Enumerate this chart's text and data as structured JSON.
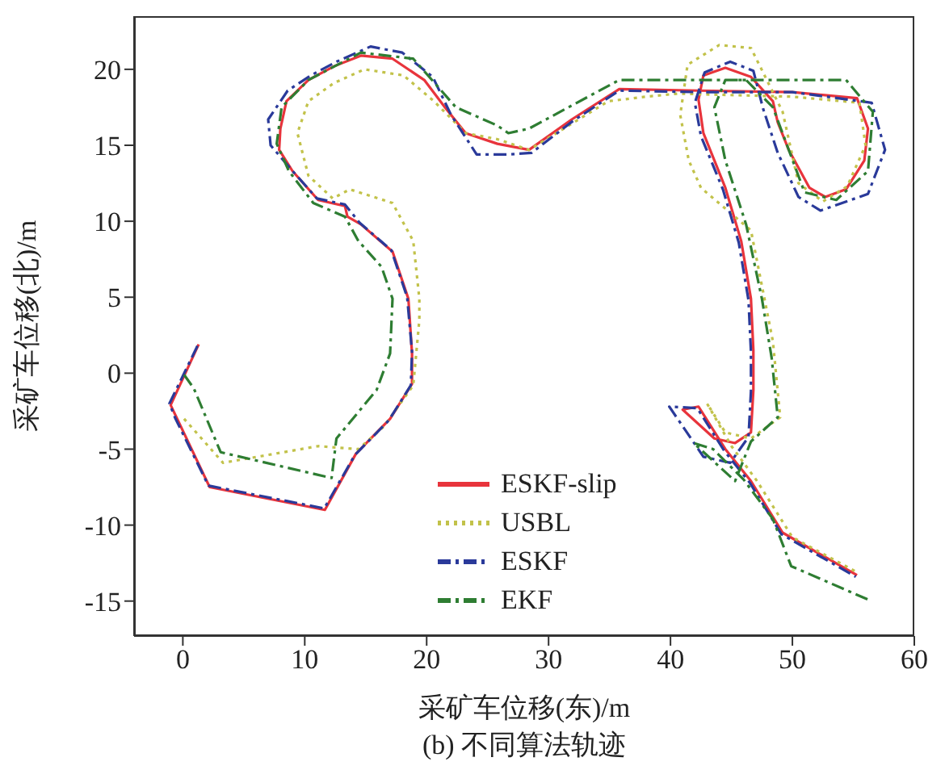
{
  "chart_data": {
    "type": "line",
    "xlabel": "采矿车位移(东)/m",
    "ylabel": "采矿车位移(北)/m",
    "annotations": [
      "(b) 不同算法轨迹"
    ],
    "xlim": [
      -4,
      60
    ],
    "ylim": [
      -17.3,
      23.5
    ],
    "xticks": [
      0,
      10,
      20,
      30,
      40,
      50,
      60
    ],
    "yticks": [
      -15,
      -10,
      -5,
      0,
      5,
      10,
      15,
      20
    ],
    "grid": false,
    "legend": "bottom",
    "marker": "none",
    "series": [
      {
        "name": "ESKF-slip",
        "color": "#e8343c",
        "line_style": "solid",
        "x": [
          1.3,
          -1.0,
          2.2,
          11.65,
          14.2,
          17.0,
          18.8,
          18.8,
          18.5,
          17.2,
          14.6,
          13.5,
          13.3,
          11.1,
          9.0,
          7.9,
          8.0,
          8.5,
          10.3,
          12.4,
          14.6,
          17.2,
          19.8,
          21.5,
          23.2,
          25.8,
          28.4,
          31.9,
          35.8,
          42.3,
          50,
          55.3,
          56.2,
          55.9,
          54.4,
          52.7,
          51.4,
          49.7,
          48.8,
          48.4,
          46.6,
          44.5,
          42.7,
          42.3,
          42.7,
          44.5,
          45.8,
          46.6,
          46.8,
          46.8,
          46.6,
          45.3,
          43.6,
          41.0,
          42.3,
          44.5,
          46.6,
          49.2,
          55.3
        ],
        "values": [
          1.9,
          -2.1,
          -7.5,
          -9.0,
          -5.3,
          -3.0,
          -0.7,
          1.3,
          4.9,
          8.0,
          9.8,
          10.3,
          11.0,
          11.4,
          13.3,
          14.7,
          16.1,
          17.9,
          19.3,
          20.2,
          20.9,
          20.7,
          19.3,
          17.5,
          15.8,
          15.1,
          14.7,
          16.7,
          18.7,
          18.6,
          18.5,
          18.1,
          16.1,
          14.0,
          12.1,
          11.6,
          12.2,
          14.7,
          16.5,
          17.9,
          19.5,
          20.1,
          19.6,
          18.0,
          15.8,
          12.2,
          8.7,
          4.9,
          1.5,
          -1.1,
          -3.9,
          -4.6,
          -4.3,
          -2.4,
          -2.2,
          -5.0,
          -7.1,
          -10.5,
          -13.3
        ]
      },
      {
        "name": "USBL",
        "color": "#c2c24a",
        "line_style": "dotted",
        "x": [
          0.1,
          3.3,
          11.1,
          14.4,
          16.5,
          18.9,
          19.4,
          19.4,
          18.9,
          17.2,
          13.7,
          12.3,
          10.3,
          9.4,
          10.3,
          12.4,
          14.9,
          18.1,
          20.6,
          23.2,
          25.8,
          28.4,
          34.9,
          38.0,
          40.6,
          50,
          55.5,
          56.0,
          54.5,
          52.5,
          50.5,
          49.2,
          46.6,
          44.0,
          41.4,
          40.8,
          41.5,
          42.5,
          46.6,
          48.4,
          49.0,
          46.6,
          44.5,
          43.0,
          45.0,
          47.1,
          50.0,
          55.3
        ],
        "values": [
          -3.0,
          -5.9,
          -4.8,
          -5.0,
          -3.5,
          -0.8,
          3.5,
          4.9,
          8.7,
          11.2,
          12.1,
          11.5,
          13.0,
          15.8,
          17.9,
          19.1,
          20.0,
          19.6,
          17.9,
          15.8,
          15.4,
          14.7,
          17.9,
          18.2,
          18.4,
          18.2,
          17.8,
          15.0,
          12.3,
          11.3,
          12.5,
          17.2,
          21.4,
          21.6,
          20.3,
          17.0,
          14.0,
          12.2,
          9.4,
          2.1,
          -2.9,
          -4.3,
          -3.9,
          -2.0,
          -4.8,
          -7.1,
          -10.8,
          -13.1
        ]
      },
      {
        "name": "ESKF",
        "color": "#2a3a9a",
        "line_style": "dashed",
        "x": [
          1.2,
          -1.1,
          -0.6,
          2.1,
          11.6,
          14.1,
          16.9,
          18.7,
          18.8,
          18.4,
          17.1,
          14.5,
          13.3,
          11.0,
          8.9,
          7.2,
          7.0,
          8.6,
          10.5,
          12.6,
          15.4,
          18.0,
          20.5,
          22.0,
          24.1,
          26.7,
          28.6,
          32.0,
          35.8,
          42.3,
          50,
          56.5,
          57.6,
          56.2,
          52.3,
          50.5,
          48.8,
          47.6,
          46.8,
          44.9,
          42.8,
          42.0,
          42.5,
          44.3,
          45.6,
          46.4,
          46.6,
          46.6,
          46.4,
          44.9,
          42.7,
          39.9,
          42.2,
          44.4,
          46.5,
          49.1,
          55.2
        ],
        "values": [
          1.8,
          -2.0,
          -3.0,
          -7.4,
          -8.9,
          -5.4,
          -3.1,
          -0.8,
          1.4,
          5.0,
          8.1,
          9.9,
          11.1,
          11.5,
          13.4,
          15.0,
          16.7,
          18.6,
          19.6,
          20.5,
          21.5,
          21.1,
          19.5,
          17.0,
          14.4,
          14.4,
          14.5,
          16.6,
          18.6,
          18.5,
          18.5,
          17.8,
          14.7,
          11.8,
          10.7,
          11.6,
          14.5,
          17.4,
          19.9,
          20.5,
          19.8,
          17.8,
          15.6,
          12.1,
          8.6,
          4.8,
          1.4,
          -1.2,
          -4.2,
          -5.9,
          -5.5,
          -2.2,
          -2.3,
          -5.1,
          -7.2,
          -10.6,
          -13.4
        ]
      },
      {
        "name": "EKF",
        "color": "#2e7d32",
        "line_style": "dashed",
        "x": [
          0.1,
          0.9,
          3.1,
          12.2,
          12.6,
          15.9,
          17.0,
          17.2,
          16.3,
          14.4,
          13.3,
          10.7,
          8.7,
          7.7,
          8.1,
          10.3,
          14.6,
          18.9,
          22.4,
          25.8,
          26.7,
          28.4,
          35.8,
          54.4,
          56.6,
          56.2,
          53.6,
          51.0,
          48.4,
          46.2,
          44.5,
          43.6,
          44.5,
          46.2,
          47.5,
          48.3,
          48.8,
          46.6,
          45.3,
          41.9,
          43.5,
          46.0,
          48.4,
          49.9,
          56.2
        ],
        "values": [
          -0.1,
          -1.0,
          -5.2,
          -6.9,
          -4.3,
          -1.1,
          1.3,
          4.9,
          7.0,
          8.7,
          10.3,
          11.2,
          13.3,
          15.1,
          17.5,
          19.3,
          21.1,
          20.7,
          17.5,
          16.3,
          15.8,
          16.1,
          19.3,
          19.3,
          17.2,
          13.3,
          11.4,
          11.9,
          17.5,
          19.3,
          19.3,
          17.5,
          14.0,
          9.8,
          4.9,
          1.0,
          -2.9,
          -4.5,
          -7.1,
          -4.6,
          -5.0,
          -7.0,
          -9.6,
          -12.7,
          -14.9
        ]
      }
    ]
  }
}
